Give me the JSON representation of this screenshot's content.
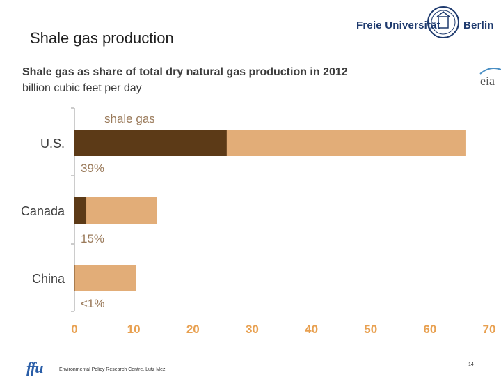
{
  "slide": {
    "title": "Shale gas production",
    "logo_left_text": "Freie Universität",
    "logo_right_text": "Berlin",
    "eia_logo_text": "eia",
    "footer_text": "Environmental Policy Research Centre, Lutz Mez",
    "ffu_logo_text": "ffu",
    "page_number": "14"
  },
  "colors": {
    "shale": "#5c3a17",
    "total": "#e2ad78",
    "axis": "#9a9a9a",
    "text": "#3c3c3c"
  },
  "chart_data": {
    "type": "bar",
    "orientation": "horizontal",
    "title": "Shale gas as share of total dry natural gas production in 2012",
    "subtitle": "billion cubic feet per day",
    "legend_label": "shale gas",
    "xlim": [
      0,
      70
    ],
    "x_ticks": [
      0,
      10,
      20,
      30,
      40,
      50,
      60,
      70
    ],
    "categories": [
      "U.S.",
      "Canada",
      "China"
    ],
    "series": [
      {
        "name": "shale gas",
        "values": [
          25.7,
          2.0,
          0.05
        ]
      },
      {
        "name": "total dry natural gas production",
        "values": [
          66.0,
          13.9,
          10.4
        ]
      }
    ],
    "share_labels": [
      "39%",
      "15%",
      "<1%"
    ]
  }
}
